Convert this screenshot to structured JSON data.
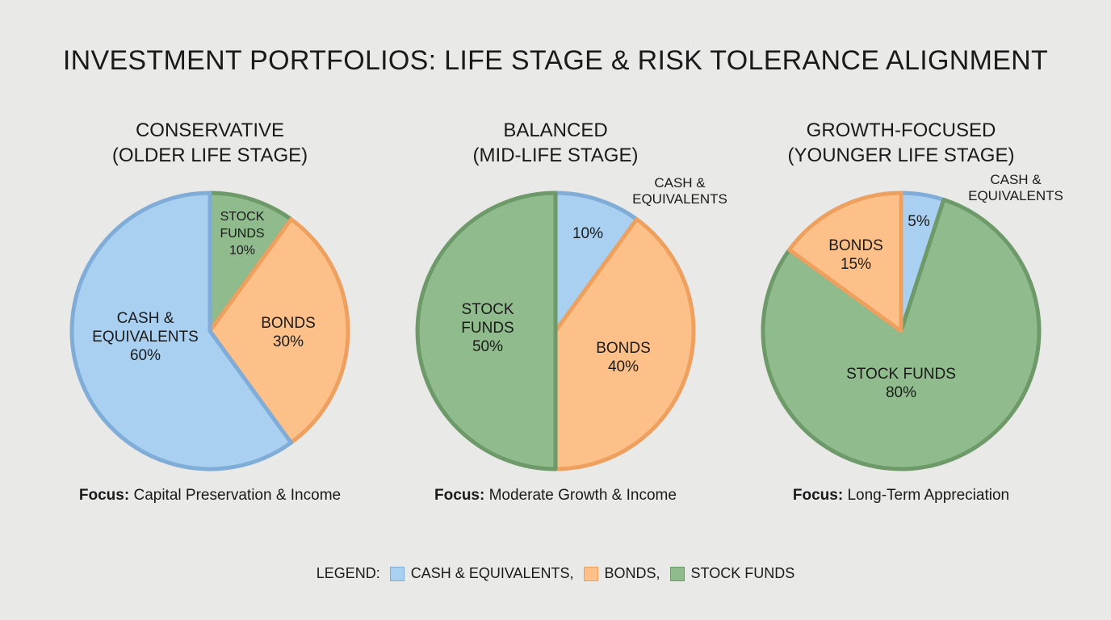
{
  "title": "INVESTMENT PORTFOLIOS: LIFE STAGE & RISK TOLERANCE ALIGNMENT",
  "colors": {
    "cash": {
      "fill": "#a9d0f0",
      "stroke": "#7fadd8"
    },
    "bonds": {
      "fill": "#fdc088",
      "stroke": "#eea05e"
    },
    "stock": {
      "fill": "#90bb8c",
      "stroke": "#6e9a6a"
    }
  },
  "chart_data": [
    {
      "type": "pie",
      "title": "CONSERVATIVE",
      "subtitle": "(OLDER LIFE STAGE)",
      "focus_label": "Focus:",
      "focus_text": "Capital Preservation & Income",
      "slices": [
        {
          "key": "stock",
          "label": "STOCK FUNDS",
          "value": 10,
          "text": "10%"
        },
        {
          "key": "bonds",
          "label": "BONDS",
          "value": 30,
          "text": "30%"
        },
        {
          "key": "cash",
          "label": "CASH & EQUIVALENTS",
          "value": 60,
          "text": "60%"
        }
      ]
    },
    {
      "type": "pie",
      "title": "BALANCED",
      "subtitle": "(MID-LIFE STAGE)",
      "focus_label": "Focus:",
      "focus_text": "Moderate Growth & Income",
      "slices": [
        {
          "key": "cash",
          "label": "CASH & EQUIVALENTS",
          "value": 10,
          "text": "10%"
        },
        {
          "key": "bonds",
          "label": "BONDS",
          "value": 40,
          "text": "40%"
        },
        {
          "key": "stock",
          "label": "STOCK FUNDS",
          "value": 50,
          "text": "50%"
        }
      ]
    },
    {
      "type": "pie",
      "title": "GROWTH-FOCUSED",
      "subtitle": "(YOUNGER LIFE STAGE)",
      "focus_label": "Focus:",
      "focus_text": "Long-Term Appreciation",
      "slices": [
        {
          "key": "cash",
          "label": "CASH & EQUIVALENTS",
          "value": 5,
          "text": "5%"
        },
        {
          "key": "stock",
          "label": "STOCK FUNDS",
          "value": 80,
          "text": "80%"
        },
        {
          "key": "bonds",
          "label": "BONDS",
          "value": 15,
          "text": "15%"
        }
      ]
    }
  ],
  "legend": {
    "label": "LEGEND:",
    "items": [
      {
        "key": "cash",
        "label": "CASH & EQUIVALENTS,"
      },
      {
        "key": "bonds",
        "label": "BONDS,"
      },
      {
        "key": "stock",
        "label": "STOCK FUNDS"
      }
    ],
    "placement": "bottom"
  }
}
